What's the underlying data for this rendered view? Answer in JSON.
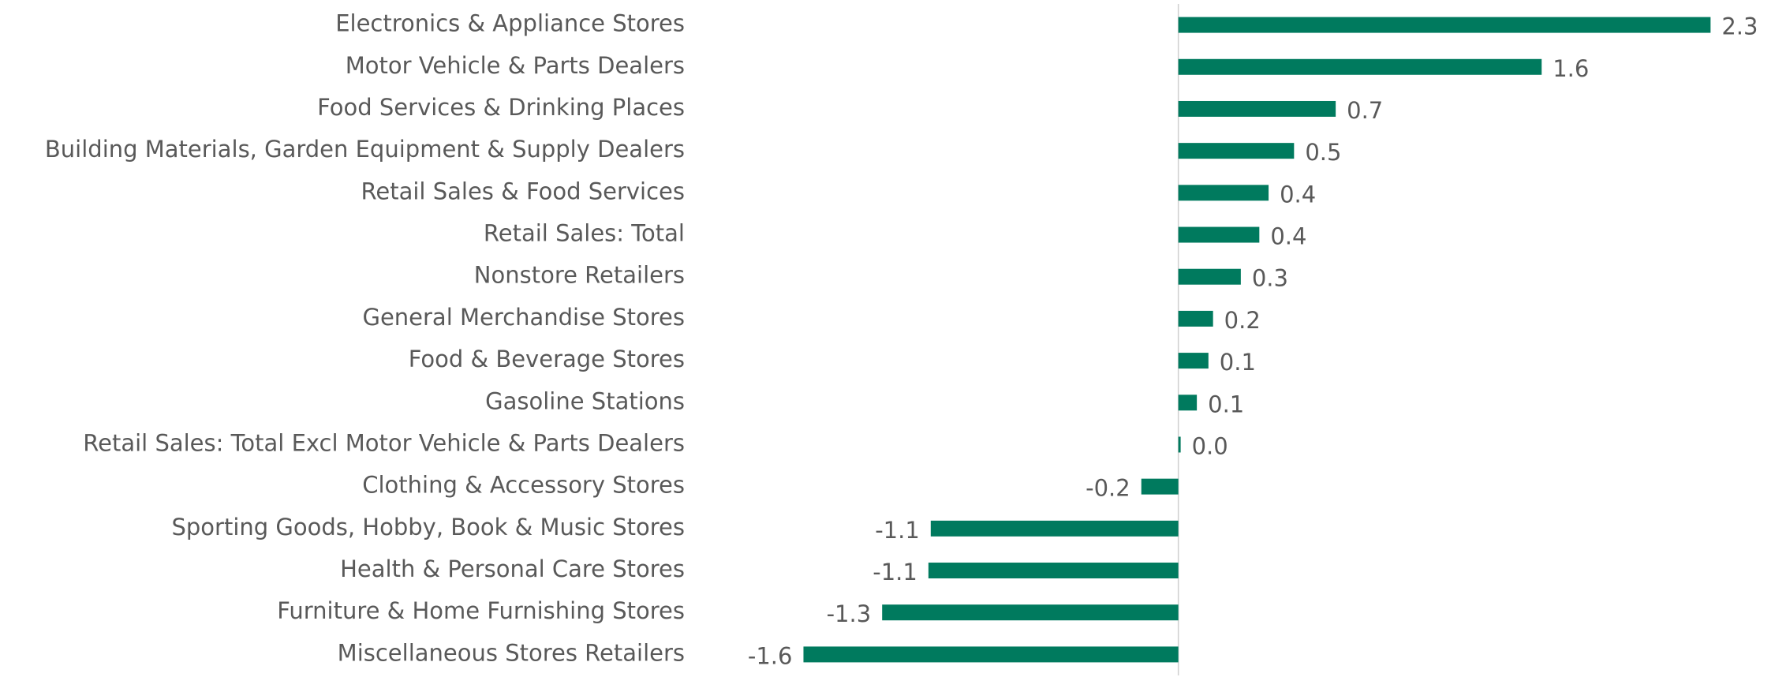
{
  "chart_data": {
    "type": "barh",
    "categories": [
      "Electronics & Appliance Stores",
      "Motor Vehicle & Parts Dealers",
      "Food Services & Drinking Places",
      "Building Materials, Garden Equipment & Supply Dealers",
      "Retail Sales & Food Services",
      "Retail Sales: Total",
      "Nonstore Retailers",
      "General Merchandise Stores",
      "Food & Beverage Stores",
      "Gasoline Stations",
      "Retail Sales: Total Excl Motor Vehicle & Parts Dealers",
      "Clothing & Accessory Stores",
      "Sporting Goods, Hobby, Book & Music Stores",
      "Health & Personal Care Stores",
      "Furniture & Home Furnishing Stores",
      "Miscellaneous Stores Retailers"
    ],
    "values": [
      2.3,
      1.57,
      0.68,
      0.5,
      0.39,
      0.35,
      0.27,
      0.15,
      0.13,
      0.08,
      0.01,
      -0.16,
      -1.07,
      -1.08,
      -1.28,
      -1.62
    ],
    "value_labels": [
      "2.3",
      "1.6",
      "0.7",
      "0.5",
      "0.4",
      "0.4",
      "0.3",
      "0.2",
      "0.1",
      "0.1",
      "0.0",
      "-0.2",
      "-1.1",
      "-1.1",
      "-1.3",
      "-1.6"
    ],
    "color": "#007a5e",
    "xlim": [
      -2,
      2.5
    ]
  }
}
